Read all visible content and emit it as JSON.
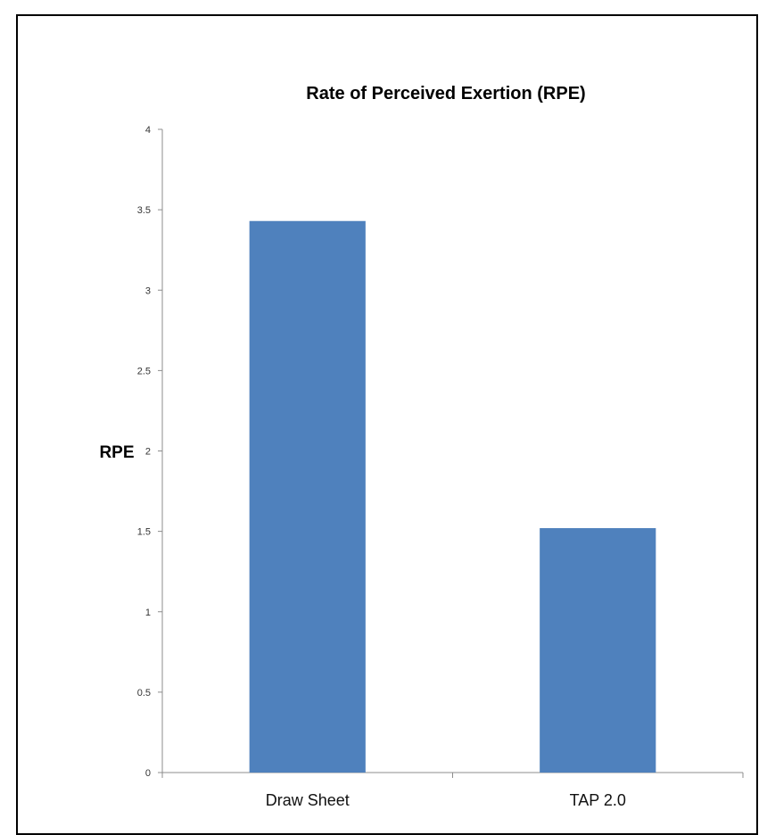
{
  "chart_data": {
    "type": "bar",
    "title": "Rate of Perceived Exertion (RPE)",
    "xlabel": "",
    "ylabel": "RPE",
    "categories": [
      "Draw Sheet",
      "TAP 2.0"
    ],
    "values": [
      3.43,
      1.52
    ],
    "ylim": [
      0,
      4
    ],
    "yticks": [
      "0",
      "0.5",
      "1",
      "1.5",
      "2",
      "2.5",
      "3",
      "3.5",
      "4"
    ],
    "grid": false,
    "legend": "none",
    "bar_color": "#4F81BD"
  }
}
